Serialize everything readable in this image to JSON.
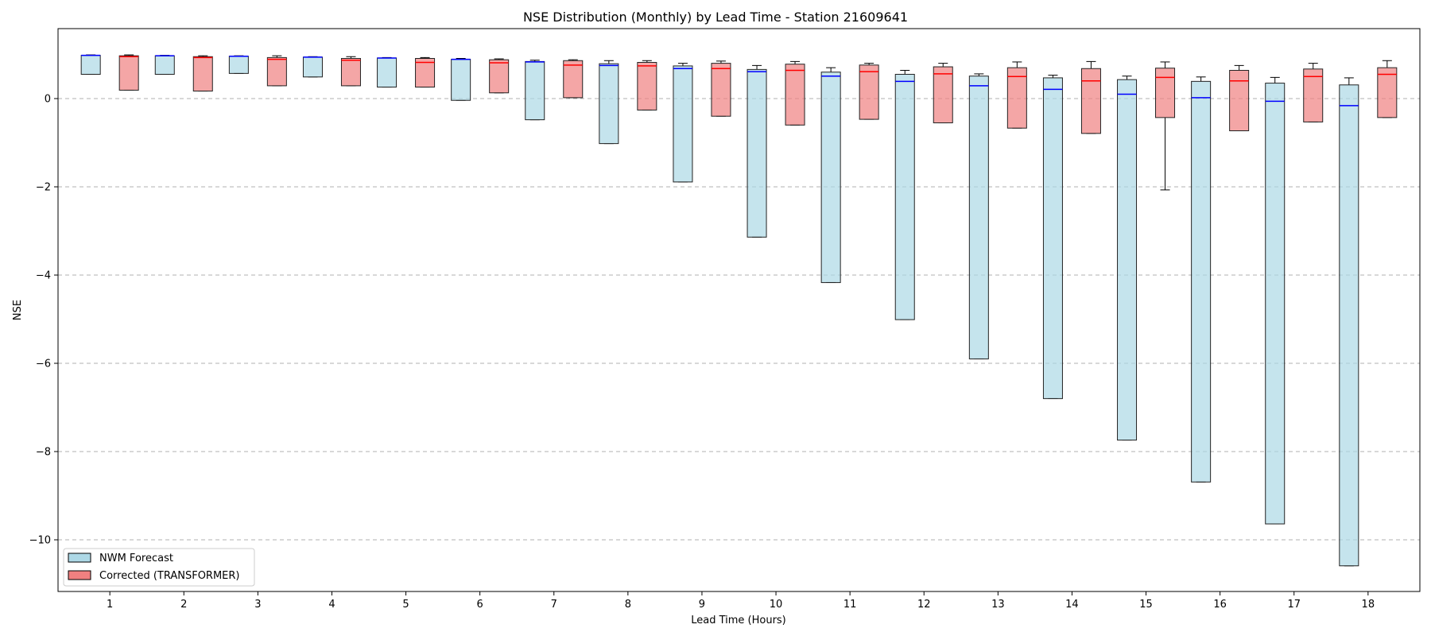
{
  "chart_data": {
    "type": "boxplot",
    "title": "NSE Distribution (Monthly) by Lead Time - Station 21609641",
    "xlabel": "Lead Time (Hours)",
    "ylabel": "NSE",
    "categories": [
      "1",
      "2",
      "3",
      "4",
      "5",
      "6",
      "7",
      "8",
      "9",
      "10",
      "11",
      "12",
      "13",
      "14",
      "15",
      "16",
      "17",
      "18"
    ],
    "ylim": [
      -11.2,
      1.55
    ],
    "yticks": [
      0,
      -2,
      -4,
      -6,
      -8,
      -10
    ],
    "ytick_labels": [
      "0",
      "−2",
      "−4",
      "−6",
      "−8",
      "−10"
    ],
    "grid": "horizontal-dashed",
    "legend_position": "lower-left",
    "series": [
      {
        "name": "NWM Forecast",
        "fill": "#add8e6",
        "median_color": "#0000ff",
        "boxes": [
          {
            "min": 0.55,
            "q1": 0.55,
            "median": 0.98,
            "q3": 0.98,
            "max": 0.99
          },
          {
            "min": 0.55,
            "q1": 0.55,
            "median": 0.97,
            "q3": 0.97,
            "max": 0.98
          },
          {
            "min": 0.57,
            "q1": 0.57,
            "median": 0.96,
            "q3": 0.96,
            "max": 0.97
          },
          {
            "min": 0.49,
            "q1": 0.49,
            "median": 0.94,
            "q3": 0.94,
            "max": 0.95
          },
          {
            "min": 0.26,
            "q1": 0.26,
            "median": 0.92,
            "q3": 0.92,
            "max": 0.93
          },
          {
            "min": -0.04,
            "q1": -0.04,
            "median": 0.89,
            "q3": 0.89,
            "max": 0.91
          },
          {
            "min": -0.48,
            "q1": -0.48,
            "median": 0.83,
            "q3": 0.84,
            "max": 0.87
          },
          {
            "min": -1.02,
            "q1": -1.02,
            "median": 0.75,
            "q3": 0.79,
            "max": 0.86
          },
          {
            "min": -1.89,
            "q1": -1.89,
            "median": 0.68,
            "q3": 0.74,
            "max": 0.8
          },
          {
            "min": -3.14,
            "q1": -3.14,
            "median": 0.61,
            "q3": 0.66,
            "max": 0.75
          },
          {
            "min": -4.17,
            "q1": -4.17,
            "median": 0.51,
            "q3": 0.6,
            "max": 0.7
          },
          {
            "min": -5.01,
            "q1": -5.01,
            "median": 0.39,
            "q3": 0.55,
            "max": 0.64
          },
          {
            "min": -5.9,
            "q1": -5.9,
            "median": 0.29,
            "q3": 0.51,
            "max": 0.56
          },
          {
            "min": -6.8,
            "q1": -6.8,
            "median": 0.21,
            "q3": 0.47,
            "max": 0.53
          },
          {
            "min": -7.74,
            "q1": -7.74,
            "median": 0.1,
            "q3": 0.43,
            "max": 0.51
          },
          {
            "min": -8.69,
            "q1": -8.69,
            "median": 0.02,
            "q3": 0.39,
            "max": 0.49
          },
          {
            "min": -9.64,
            "q1": -9.64,
            "median": -0.06,
            "q3": 0.35,
            "max": 0.48
          },
          {
            "min": -10.59,
            "q1": -10.59,
            "median": -0.16,
            "q3": 0.31,
            "max": 0.47
          }
        ]
      },
      {
        "name": "Corrected (TRANSFORMER)",
        "fill": "#f08080",
        "median_color": "#ff0000",
        "boxes": [
          {
            "min": 0.19,
            "q1": 0.19,
            "median": 0.95,
            "q3": 0.97,
            "max": 0.99
          },
          {
            "min": 0.17,
            "q1": 0.17,
            "median": 0.93,
            "q3": 0.95,
            "max": 0.97
          },
          {
            "min": 0.29,
            "q1": 0.29,
            "median": 0.89,
            "q3": 0.93,
            "max": 0.97
          },
          {
            "min": 0.29,
            "q1": 0.29,
            "median": 0.87,
            "q3": 0.91,
            "max": 0.95
          },
          {
            "min": 0.26,
            "q1": 0.26,
            "median": 0.82,
            "q3": 0.91,
            "max": 0.93
          },
          {
            "min": 0.13,
            "q1": 0.13,
            "median": 0.81,
            "q3": 0.88,
            "max": 0.9
          },
          {
            "min": 0.02,
            "q1": 0.02,
            "median": 0.76,
            "q3": 0.86,
            "max": 0.88
          },
          {
            "min": -0.26,
            "q1": -0.26,
            "median": 0.74,
            "q3": 0.82,
            "max": 0.86
          },
          {
            "min": -0.4,
            "q1": -0.4,
            "median": 0.68,
            "q3": 0.8,
            "max": 0.85
          },
          {
            "min": -0.6,
            "q1": -0.6,
            "median": 0.64,
            "q3": 0.78,
            "max": 0.84
          },
          {
            "min": -0.47,
            "q1": -0.47,
            "median": 0.61,
            "q3": 0.76,
            "max": 0.8
          },
          {
            "min": -0.55,
            "q1": -0.55,
            "median": 0.56,
            "q3": 0.72,
            "max": 0.8
          },
          {
            "min": -0.67,
            "q1": -0.67,
            "median": 0.5,
            "q3": 0.7,
            "max": 0.83
          },
          {
            "min": -0.79,
            "q1": -0.79,
            "median": 0.4,
            "q3": 0.68,
            "max": 0.84
          },
          {
            "min": -2.07,
            "q1": -0.43,
            "median": 0.48,
            "q3": 0.69,
            "max": 0.83
          },
          {
            "min": -0.73,
            "q1": -0.73,
            "median": 0.4,
            "q3": 0.64,
            "max": 0.75
          },
          {
            "min": -0.53,
            "q1": -0.53,
            "median": 0.5,
            "q3": 0.67,
            "max": 0.8
          },
          {
            "min": -0.43,
            "q1": -0.43,
            "median": 0.55,
            "q3": 0.7,
            "max": 0.86
          }
        ]
      }
    ]
  }
}
